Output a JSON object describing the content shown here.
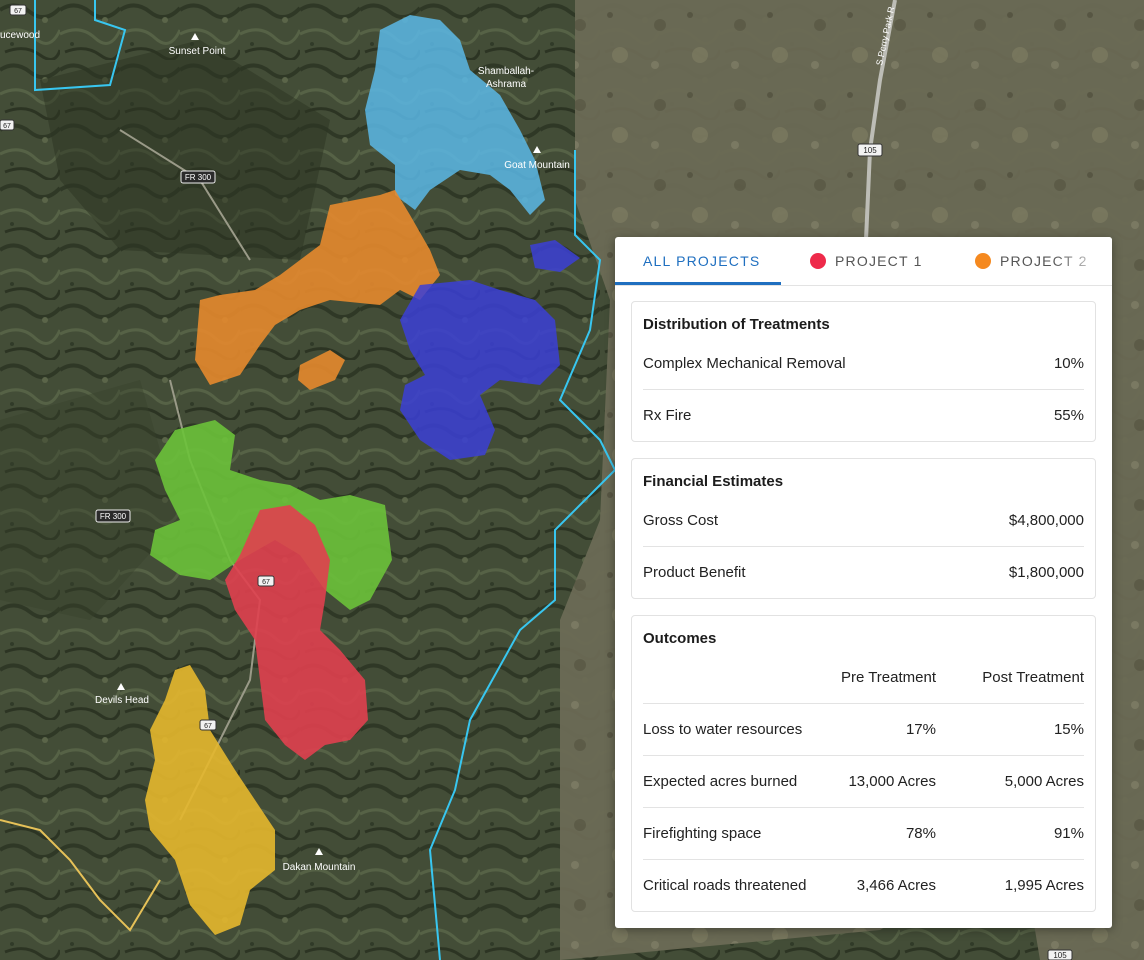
{
  "map": {
    "labels": {
      "sunset_point": "Sunset Point",
      "shamballah": "Shamballah-",
      "ashrama": "Ashrama",
      "goat_mountain": "Goat Mountain",
      "devils_head": "Devils Head",
      "dakan_mountain": "Dakan Mountain",
      "sprucewood": "ucewood",
      "perry_park": "S Perry Park R",
      "fr300_top": "FR 300",
      "fr300_bottom": "FR 300",
      "r105_top": "105",
      "r105_bottom": "105",
      "r67_a": "67",
      "r67_b": "67",
      "r67_c": "67",
      "r67_d": "67",
      "r67_e": "67"
    },
    "colors": {
      "project_light_blue": "#5ab8e6",
      "project_orange": "#e68a2e",
      "project_dark_blue": "#3b3fd6",
      "project_green": "#6cc23a",
      "project_red": "#e0404f",
      "project_yellow": "#e6b82e",
      "boundary": "#38c6f0"
    }
  },
  "panel": {
    "tabs": {
      "all": "ALL PROJECTS",
      "p1": "PROJECT 1",
      "p2": "PROJECT 2",
      "p1_color": "#ee2a4a",
      "p2_color": "#f5891f",
      "active_color": "#1f6fc0"
    },
    "distribution": {
      "title": "Distribution of Treatments",
      "rows": [
        {
          "label": "Complex Mechanical Removal",
          "value": "10%"
        },
        {
          "label": "Rx Fire",
          "value": "55%"
        }
      ]
    },
    "financial": {
      "title": "Financial Estimates",
      "rows": [
        {
          "label": "Gross Cost",
          "value": "$4,800,000"
        },
        {
          "label": "Product Benefit",
          "value": "$1,800,000"
        }
      ]
    },
    "outcomes": {
      "title": "Outcomes",
      "col_pre": "Pre Treatment",
      "col_post": "Post Treatment",
      "rows": [
        {
          "label": "Loss to water resources",
          "pre": "17%",
          "post": "15%"
        },
        {
          "label": "Expected acres burned",
          "pre": "13,000 Acres",
          "post": "5,000 Acres"
        },
        {
          "label": "Firefighting space",
          "pre": "78%",
          "post": "91%"
        },
        {
          "label": "Critical roads threatened",
          "pre": "3,466 Acres",
          "post": "1,995 Acres"
        }
      ]
    }
  }
}
